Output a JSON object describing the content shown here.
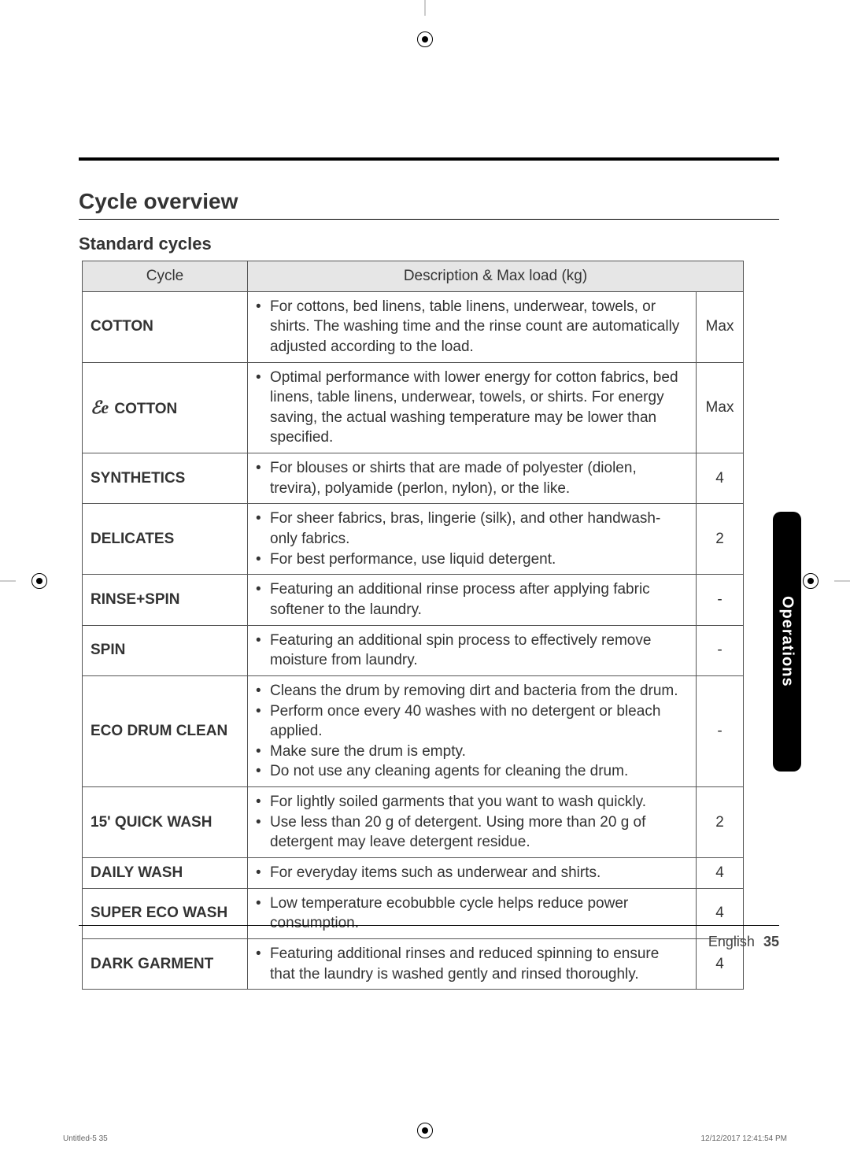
{
  "section_title": "Cycle overview",
  "sub_title": "Standard cycles",
  "table": {
    "header_cycle": "Cycle",
    "header_desc": "Description & Max load (kg)",
    "rows": [
      {
        "name": "COTTON",
        "bullets": [
          "For cottons, bed linens, table linens, underwear, towels, or shirts. The washing time and the rinse count are automatically adjusted according to the load."
        ],
        "load": "Max"
      },
      {
        "name": " COTTON",
        "eco": true,
        "bullets": [
          "Optimal performance with lower energy for cotton fabrics, bed linens, table linens, underwear, towels, or shirts. For energy saving, the actual washing temperature may be lower than specified."
        ],
        "load": "Max"
      },
      {
        "name": "SYNTHETICS",
        "bullets": [
          "For blouses or shirts that are made of polyester (diolen, trevira), polyamide (perlon, nylon), or the like."
        ],
        "load": "4"
      },
      {
        "name": "DELICATES",
        "bullets": [
          "For sheer fabrics, bras, lingerie (silk), and other handwash-only fabrics.",
          "For best performance, use liquid detergent."
        ],
        "load": "2"
      },
      {
        "name": "RINSE+SPIN",
        "bullets": [
          "Featuring an additional rinse process after applying fabric softener to the laundry."
        ],
        "load": "-"
      },
      {
        "name": "SPIN",
        "bullets": [
          "Featuring an additional spin process to effectively remove moisture from laundry."
        ],
        "load": "-"
      },
      {
        "name": "ECO DRUM CLEAN",
        "bullets": [
          "Cleans the drum by removing dirt and bacteria from the drum.",
          "Perform once every 40 washes with no detergent or bleach applied.",
          "Make sure the drum is empty.",
          "Do not use any cleaning agents for cleaning the drum."
        ],
        "load": "-"
      },
      {
        "name": "15' QUICK WASH",
        "bullets": [
          "For lightly soiled garments that you want to wash quickly.",
          "Use less than 20 g of detergent. Using more than 20 g of detergent may leave detergent residue."
        ],
        "load": "2"
      },
      {
        "name": "DAILY WASH",
        "bullets": [
          "For everyday items such as underwear and shirts."
        ],
        "load": "4"
      },
      {
        "name": "SUPER ECO WASH",
        "bullets": [
          "Low temperature ecobubble cycle helps reduce power consumption."
        ],
        "load": "4"
      },
      {
        "name": "DARK GARMENT",
        "bullets": [
          "Featuring additional rinses and reduced spinning to ensure that the laundry is washed gently and rinsed thoroughly."
        ],
        "load": "4"
      }
    ]
  },
  "side_tab": "Operations",
  "footer_label": "English",
  "page_number": "35",
  "meta_left": "Untitled-5   35",
  "meta_right": "12/12/2017   12:41:54 PM",
  "eco_glyph": "ℰe"
}
